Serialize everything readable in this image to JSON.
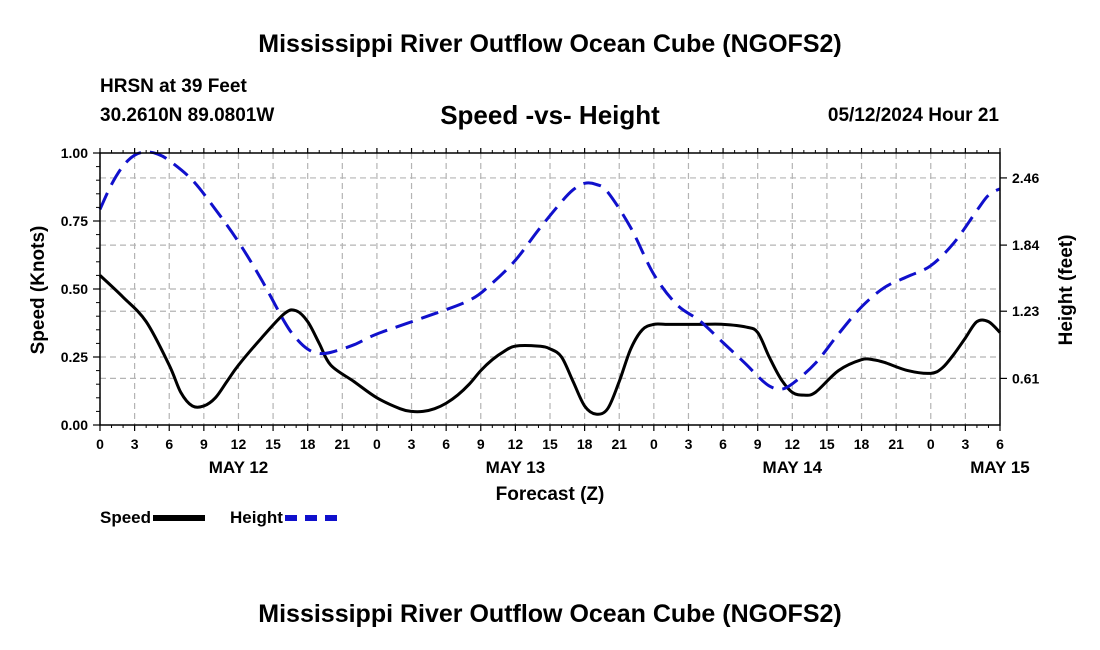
{
  "page": {
    "title_top": "Mississippi River Outflow Ocean Cube (NGOFS2)",
    "title_bottom": "Mississippi River Outflow Ocean Cube (NGOFS2)",
    "station": "HRSN at 39 Feet",
    "coords": "30.2610N  89.0801W",
    "subtitle": "Speed -vs- Height",
    "run_time": "05/12/2024 Hour 21"
  },
  "colors": {
    "speed": "#000000",
    "height": "#1010cc",
    "grid": "#b4b4b4"
  },
  "chart_data": {
    "type": "line",
    "title": "Speed -vs- Height",
    "xlabel": "Forecast (Z)",
    "ylabel": "Speed (Knots)",
    "y2label": "Height (feet)",
    "x_range": [
      0,
      78
    ],
    "ylim": [
      0,
      1
    ],
    "y2lim": [
      0.18,
      2.69
    ],
    "y_ticks": [
      0,
      0.25,
      0.5,
      0.75,
      1.0
    ],
    "y_tick_labels": [
      "0.00",
      "0.25",
      "0.50",
      "0.75",
      "1.00"
    ],
    "y2_ticks": [
      0.61,
      1.23,
      1.84,
      2.46
    ],
    "y2_tick_labels": [
      "0.61",
      "1.23",
      "1.84",
      "2.46"
    ],
    "x_ticks": [
      0,
      3,
      6,
      9,
      12,
      15,
      18,
      21,
      24,
      27,
      30,
      33,
      36,
      39,
      42,
      45,
      48,
      51,
      54,
      57,
      60,
      63,
      66,
      69,
      72,
      75,
      78
    ],
    "x_tick_labels": [
      "0",
      "3",
      "6",
      "9",
      "12",
      "15",
      "18",
      "21",
      "0",
      "3",
      "6",
      "9",
      "12",
      "15",
      "18",
      "21",
      "0",
      "3",
      "6",
      "9",
      "12",
      "15",
      "18",
      "21",
      "0",
      "3",
      "6"
    ],
    "day_labels": [
      {
        "hour": 12,
        "label": "MAY 12"
      },
      {
        "hour": 36,
        "label": "MAY 13"
      },
      {
        "hour": 60,
        "label": "MAY 14"
      },
      {
        "hour": 78,
        "label": "MAY 15"
      }
    ],
    "series": [
      {
        "name": "Speed",
        "axis": "left",
        "style": "solid",
        "x": [
          0,
          2,
          4,
          6,
          7,
          8,
          9,
          10,
          11,
          12,
          14,
          16,
          17,
          18,
          19,
          20,
          22,
          24,
          26,
          27,
          28,
          29,
          30,
          31,
          32,
          33,
          34,
          35,
          36,
          38,
          39,
          40,
          41,
          42,
          43,
          44,
          45,
          46,
          47,
          48,
          49,
          50,
          52,
          54,
          56,
          57,
          58,
          59,
          60,
          61,
          62,
          64,
          66,
          67,
          68,
          70,
          72,
          73,
          74,
          75,
          76,
          77,
          78
        ],
        "y": [
          0.55,
          0.47,
          0.38,
          0.22,
          0.12,
          0.07,
          0.07,
          0.1,
          0.16,
          0.22,
          0.32,
          0.41,
          0.42,
          0.38,
          0.3,
          0.22,
          0.16,
          0.1,
          0.06,
          0.05,
          0.05,
          0.06,
          0.08,
          0.11,
          0.15,
          0.2,
          0.24,
          0.27,
          0.29,
          0.29,
          0.28,
          0.25,
          0.16,
          0.07,
          0.04,
          0.06,
          0.16,
          0.28,
          0.35,
          0.37,
          0.37,
          0.37,
          0.37,
          0.37,
          0.36,
          0.34,
          0.25,
          0.17,
          0.12,
          0.11,
          0.12,
          0.2,
          0.24,
          0.24,
          0.23,
          0.2,
          0.19,
          0.21,
          0.26,
          0.32,
          0.38,
          0.38,
          0.34
        ]
      },
      {
        "name": "Height",
        "axis": "right",
        "style": "dashed",
        "x": [
          0,
          1,
          2,
          3,
          4,
          5,
          6,
          8,
          10,
          12,
          14,
          16,
          17,
          18,
          19,
          20,
          22,
          24,
          28,
          32,
          34,
          36,
          38,
          40,
          41,
          42,
          43,
          44,
          46,
          48,
          50,
          52,
          54,
          56,
          57,
          58,
          59,
          60,
          62,
          64,
          66,
          68,
          70,
          72,
          74,
          76,
          77,
          78
        ],
        "y": [
          2.17,
          2.4,
          2.57,
          2.67,
          2.7,
          2.68,
          2.62,
          2.44,
          2.17,
          1.87,
          1.52,
          1.13,
          0.98,
          0.88,
          0.84,
          0.85,
          0.92,
          1.02,
          1.17,
          1.33,
          1.49,
          1.7,
          1.98,
          2.24,
          2.35,
          2.41,
          2.4,
          2.33,
          2.0,
          1.57,
          1.29,
          1.14,
          0.94,
          0.74,
          0.63,
          0.54,
          0.51,
          0.56,
          0.75,
          1.02,
          1.27,
          1.45,
          1.55,
          1.65,
          1.86,
          2.16,
          2.3,
          2.36
        ]
      }
    ],
    "legend": [
      {
        "name": "Speed",
        "style": "solid"
      },
      {
        "name": "Height",
        "style": "dashed"
      }
    ]
  }
}
